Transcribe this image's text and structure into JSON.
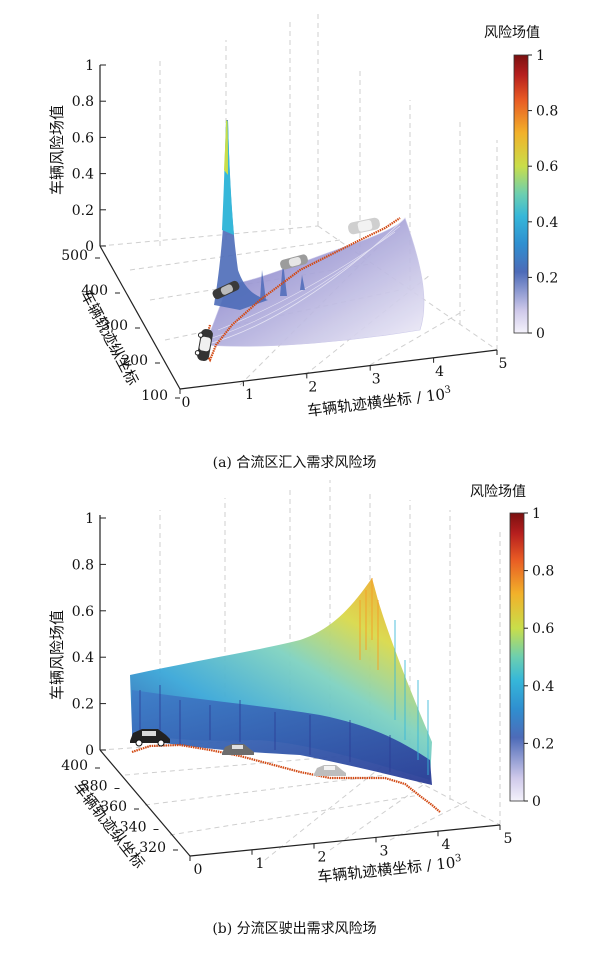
{
  "colors": {
    "colormap": [
      "#f4f2fb",
      "#cfc9ea",
      "#4d6bb8",
      "#2f8fd0",
      "#36b7d9",
      "#6ccfb0",
      "#c9de4a",
      "#f2b12a",
      "#e85a24",
      "#b51e1e",
      "#7a1010"
    ],
    "trajectory": "#d24a14",
    "surface_a": "#b9b3de",
    "axis": "#222222",
    "grid": "#c9c9c9"
  },
  "chart_data": [
    {
      "type": "surface3d",
      "caption": "(a)  合流区汇入需求风险场",
      "zlabel": "车辆风险场值",
      "ylabel": "车辆轨迹纵坐标",
      "xlabel": "车辆轨迹横坐标 / 10",
      "xlabel_exp": "3",
      "colorbar_title": "风险场值",
      "x_ticks": [
        "0",
        "1",
        "2",
        "3",
        "4",
        "5"
      ],
      "y_ticks": [
        "100",
        "200",
        "300",
        "400",
        "500"
      ],
      "z_ticks": [
        "0",
        "0.2",
        "0.4",
        "0.6",
        "0.8",
        "1"
      ],
      "colorbar_ticks": [
        "0",
        "0.2",
        "0.4",
        "0.6",
        "0.8",
        "1"
      ],
      "xlim": [
        0,
        5
      ],
      "ylim": [
        100,
        500
      ],
      "zlim": [
        0,
        1
      ],
      "peak": {
        "x": 0.9,
        "y": 330,
        "z": 0.72
      },
      "trajectory": [
        [
          0.05,
          160
        ],
        [
          0.25,
          240
        ],
        [
          0.6,
          320
        ],
        [
          1.2,
          380
        ],
        [
          2.2,
          420
        ],
        [
          3.1,
          455
        ],
        [
          3.6,
          470
        ]
      ],
      "vehicles": 4
    },
    {
      "type": "surface3d",
      "caption": "(b)  分流区驶出需求风险场",
      "zlabel": "车辆风险场值",
      "ylabel": "车辆轨迹纵坐标",
      "xlabel": "车辆轨迹横坐标 / 10",
      "xlabel_exp": "3",
      "colorbar_title": "风险场值",
      "x_ticks": [
        "0",
        "1",
        "2",
        "3",
        "4",
        "5"
      ],
      "y_ticks": [
        "320",
        "340",
        "360",
        "380",
        "400"
      ],
      "z_ticks": [
        "0",
        "0.2",
        "0.4",
        "0.6",
        "0.8",
        "1"
      ],
      "colorbar_ticks": [
        "0",
        "0.2",
        "0.4",
        "0.6",
        "0.8",
        "1"
      ],
      "xlim": [
        0,
        5
      ],
      "ylim": [
        310,
        405
      ],
      "zlim": [
        0,
        1
      ],
      "peak": {
        "x": 3.4,
        "y": 395,
        "z": 0.78
      },
      "trajectory": [
        [
          0.2,
          395
        ],
        [
          1.0,
          392
        ],
        [
          1.8,
          388
        ],
        [
          2.6,
          384
        ],
        [
          3.2,
          378
        ],
        [
          3.8,
          362
        ],
        [
          4.1,
          345
        ]
      ],
      "vehicles": 3
    }
  ]
}
